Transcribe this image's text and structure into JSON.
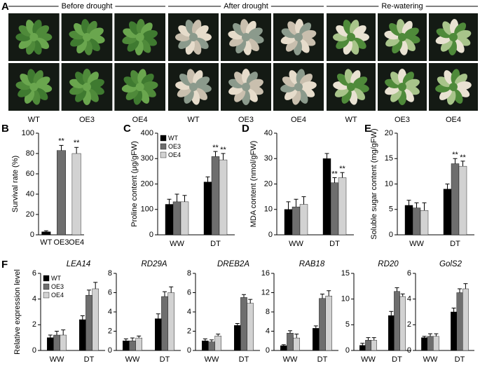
{
  "panel_a": {
    "letter": "A",
    "groups": [
      {
        "title": "Before drought",
        "labels": [
          "WT",
          "OE3",
          "OE4"
        ]
      },
      {
        "title": "After drought",
        "labels": [
          "WT",
          "OE3",
          "OE4"
        ]
      },
      {
        "title": "Re-watering",
        "labels": [
          "WT",
          "OE3",
          "OE4"
        ]
      }
    ]
  },
  "chart_data": [
    {
      "type": "bar",
      "panel": "B",
      "ylabel": "Survival rate (%)",
      "categories": [
        "WT",
        "OE3",
        "OE4"
      ],
      "values": [
        3,
        83,
        80
      ],
      "errors": [
        1,
        5,
        6
      ],
      "significance": [
        null,
        "**",
        "**"
      ],
      "colors": [
        "#000000",
        "#6e6e6e",
        "#d2d2d2"
      ],
      "ylim": [
        0,
        100
      ],
      "yticks": [
        0,
        20,
        40,
        60,
        80,
        100
      ]
    },
    {
      "type": "grouped_bar",
      "panel": "C",
      "ylabel": "Proline content (μg/gFW)",
      "legend": true,
      "categories": [
        "WW",
        "DT"
      ],
      "ylim": [
        0,
        400
      ],
      "yticks": [
        0,
        100,
        200,
        300,
        400
      ],
      "series": [
        {
          "name": "WT",
          "color": "#000000",
          "values": [
            120,
            208
          ],
          "errors": [
            20,
            20
          ],
          "significance": [
            null,
            null
          ]
        },
        {
          "name": "OE3",
          "color": "#6e6e6e",
          "values": [
            130,
            308
          ],
          "errors": [
            30,
            20
          ],
          "significance": [
            null,
            "**"
          ]
        },
        {
          "name": "OE4",
          "color": "#d2d2d2",
          "values": [
            130,
            295
          ],
          "errors": [
            25,
            25
          ],
          "significance": [
            null,
            "**"
          ]
        }
      ]
    },
    {
      "type": "grouped_bar",
      "panel": "D",
      "ylabel": "MDA content (nmol/gFW)",
      "legend": false,
      "categories": [
        "WW",
        "DT"
      ],
      "ylim": [
        0,
        40
      ],
      "yticks": [
        0,
        10,
        20,
        30,
        40
      ],
      "series": [
        {
          "name": "WT",
          "color": "#000000",
          "values": [
            10,
            30
          ],
          "errors": [
            3,
            2
          ],
          "significance": [
            null,
            null
          ]
        },
        {
          "name": "OE3",
          "color": "#6e6e6e",
          "values": [
            11,
            20.5
          ],
          "errors": [
            3,
            2
          ],
          "significance": [
            null,
            "**"
          ]
        },
        {
          "name": "OE4",
          "color": "#d2d2d2",
          "values": [
            12,
            22.5
          ],
          "errors": [
            3,
            2
          ],
          "significance": [
            null,
            "**"
          ]
        }
      ]
    },
    {
      "type": "grouped_bar",
      "panel": "E",
      "ylabel": "Soluble sugar content (mg/gFW)",
      "legend": false,
      "categories": [
        "WW",
        "DT"
      ],
      "ylim": [
        0,
        20
      ],
      "yticks": [
        0,
        5,
        10,
        15,
        20
      ],
      "series": [
        {
          "name": "WT",
          "color": "#000000",
          "values": [
            5.8,
            9
          ],
          "errors": [
            1,
            1
          ],
          "significance": [
            null,
            null
          ]
        },
        {
          "name": "OE3",
          "color": "#6e6e6e",
          "values": [
            5.3,
            14
          ],
          "errors": [
            1,
            1
          ],
          "significance": [
            null,
            "**"
          ]
        },
        {
          "name": "OE4",
          "color": "#d2d2d2",
          "values": [
            4.8,
            13.5
          ],
          "errors": [
            1.5,
            1
          ],
          "significance": [
            null,
            "**"
          ]
        }
      ]
    },
    {
      "type": "grouped_bar",
      "panel": "F",
      "title": "LEA14",
      "ylabel": "Relative expression level",
      "legend": true,
      "categories": [
        "WW",
        "DT"
      ],
      "ylim": [
        0,
        6
      ],
      "yticks": [
        0,
        2,
        4,
        6
      ],
      "series": [
        {
          "name": "WT",
          "color": "#000000",
          "values": [
            1,
            2.4
          ],
          "errors": [
            0.2,
            0.3
          ]
        },
        {
          "name": "OE3",
          "color": "#6e6e6e",
          "values": [
            1.2,
            4.3
          ],
          "errors": [
            0.3,
            0.4
          ]
        },
        {
          "name": "OE4",
          "color": "#d2d2d2",
          "values": [
            1.2,
            4.8
          ],
          "errors": [
            0.4,
            0.5
          ]
        }
      ]
    },
    {
      "type": "grouped_bar",
      "title": "RD29A",
      "legend": false,
      "categories": [
        "WW",
        "DT"
      ],
      "ylim": [
        0,
        8
      ],
      "yticks": [
        0,
        2,
        4,
        6,
        8
      ],
      "series": [
        {
          "name": "WT",
          "color": "#000000",
          "values": [
            1,
            3.3
          ],
          "errors": [
            0.2,
            0.5
          ]
        },
        {
          "name": "OE3",
          "color": "#6e6e6e",
          "values": [
            1,
            5.6
          ],
          "errors": [
            0.3,
            0.5
          ]
        },
        {
          "name": "OE4",
          "color": "#d2d2d2",
          "values": [
            1.3,
            6
          ],
          "errors": [
            0.2,
            0.6
          ]
        }
      ]
    },
    {
      "type": "grouped_bar",
      "title": "DREB2A",
      "legend": false,
      "categories": [
        "WW",
        "DT"
      ],
      "ylim": [
        0,
        8
      ],
      "yticks": [
        0,
        2,
        4,
        6,
        8
      ],
      "series": [
        {
          "name": "WT",
          "color": "#000000",
          "values": [
            1,
            2.6
          ],
          "errors": [
            0.2,
            0.2
          ]
        },
        {
          "name": "OE3",
          "color": "#6e6e6e",
          "values": [
            0.9,
            5.5
          ],
          "errors": [
            0.2,
            0.3
          ]
        },
        {
          "name": "OE4",
          "color": "#d2d2d2",
          "values": [
            1.5,
            4.9
          ],
          "errors": [
            0.2,
            0.4
          ]
        }
      ]
    },
    {
      "type": "grouped_bar",
      "title": "RAB18",
      "legend": false,
      "categories": [
        "WW",
        "DT"
      ],
      "ylim": [
        0,
        16
      ],
      "yticks": [
        0,
        4,
        8,
        12,
        16
      ],
      "series": [
        {
          "name": "WT",
          "color": "#000000",
          "values": [
            1,
            4.6
          ],
          "errors": [
            0.2,
            0.5
          ]
        },
        {
          "name": "OE3",
          "color": "#6e6e6e",
          "values": [
            3.6,
            10.8
          ],
          "errors": [
            0.5,
            0.9
          ]
        },
        {
          "name": "OE4",
          "color": "#d2d2d2",
          "values": [
            2.6,
            11.3
          ],
          "errors": [
            0.8,
            1.1
          ]
        }
      ]
    },
    {
      "type": "grouped_bar",
      "title": "RD20",
      "legend": false,
      "categories": [
        "WW",
        "DT"
      ],
      "ylim": [
        0,
        15
      ],
      "yticks": [
        0,
        5,
        10,
        15
      ],
      "series": [
        {
          "name": "WT",
          "color": "#000000",
          "values": [
            1,
            6.8
          ],
          "errors": [
            0.4,
            0.8
          ]
        },
        {
          "name": "OE3",
          "color": "#6e6e6e",
          "values": [
            2,
            11.5
          ],
          "errors": [
            0.5,
            0.7
          ]
        },
        {
          "name": "OE4",
          "color": "#d2d2d2",
          "values": [
            2,
            10.5
          ],
          "errors": [
            0.5,
            0.5
          ]
        }
      ]
    },
    {
      "type": "grouped_bar",
      "title": "GolS2",
      "legend": false,
      "categories": [
        "WW",
        "DT"
      ],
      "ylim": [
        0,
        6
      ],
      "yticks": [
        0,
        2,
        4,
        6
      ],
      "series": [
        {
          "name": "WT",
          "color": "#000000",
          "values": [
            1,
            3
          ],
          "errors": [
            0.1,
            0.3
          ]
        },
        {
          "name": "OE3",
          "color": "#6e6e6e",
          "values": [
            1.1,
            4.5
          ],
          "errors": [
            0.2,
            0.3
          ]
        },
        {
          "name": "OE4",
          "color": "#d2d2d2",
          "values": [
            1.1,
            4.8
          ],
          "errors": [
            0.2,
            0.4
          ]
        }
      ]
    }
  ]
}
